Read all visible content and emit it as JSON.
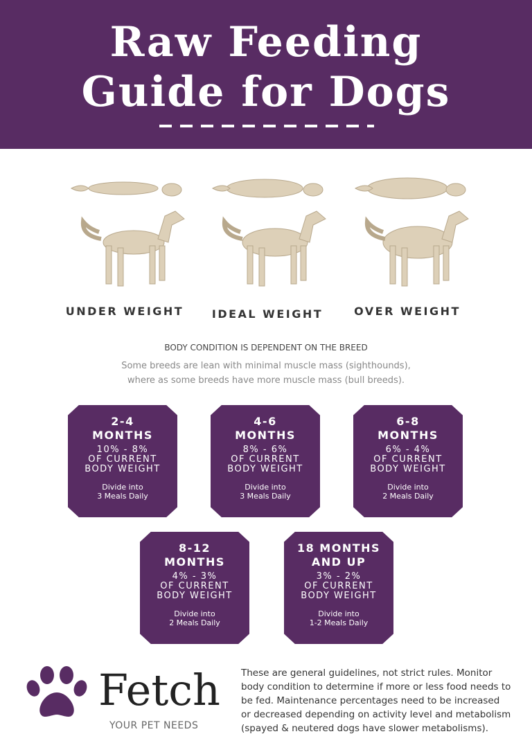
{
  "header": {
    "title_line1": "Raw Feeding",
    "title_line2": "Guide for Dogs"
  },
  "colors": {
    "brand": "#582c63",
    "dog": "#ddd0b8"
  },
  "weights": [
    {
      "label": "UNDER WEIGHT"
    },
    {
      "label": "IDEAL WEIGHT"
    },
    {
      "label": "OVER WEIGHT"
    }
  ],
  "body_condition": {
    "heading": "BODY CONDITION IS DEPENDENT ON THE BREED",
    "line1": "Some breeds are lean with minimal muscle mass (sighthounds),",
    "line2": "where as some breeds have more muscle mass (bull breeds)."
  },
  "badges": [
    {
      "age1": "2-4",
      "age2": "MONTHS",
      "pct": "10% - 8%",
      "of": "OF CURRENT",
      "bw": "BODY WEIGHT",
      "div1": "Divide into",
      "div2": "3 Meals Daily"
    },
    {
      "age1": "4-6",
      "age2": "MONTHS",
      "pct": "8% - 6%",
      "of": "OF CURRENT",
      "bw": "BODY WEIGHT",
      "div1": "Divide into",
      "div2": "3 Meals Daily"
    },
    {
      "age1": "6-8",
      "age2": "MONTHS",
      "pct": "6% - 4%",
      "of": "OF CURRENT",
      "bw": "BODY WEIGHT",
      "div1": "Divide into",
      "div2": "2 Meals Daily"
    },
    {
      "age1": "8-12",
      "age2": "MONTHS",
      "pct": "4% - 3%",
      "of": "OF CURRENT",
      "bw": "BODY WEIGHT",
      "div1": "Divide into",
      "div2": "2 Meals Daily"
    },
    {
      "age1": "18 MONTHS",
      "age2": "AND UP",
      "pct": "3% - 2%",
      "of": "OF CURRENT",
      "bw": "BODY WEIGHT",
      "div1": "Divide into",
      "div2": "1-2 Meals Daily"
    }
  ],
  "footer": {
    "brand": "Fetch",
    "tagline": "YOUR PET NEEDS",
    "note": "These are general guidelines, not strict rules. Monitor body condition to determine if more or less food needs to be fed. Maintenance percentages need to be increased or decreased depending on activity level and metabolism (spayed & neutered dogs have slower metabolisms)."
  }
}
